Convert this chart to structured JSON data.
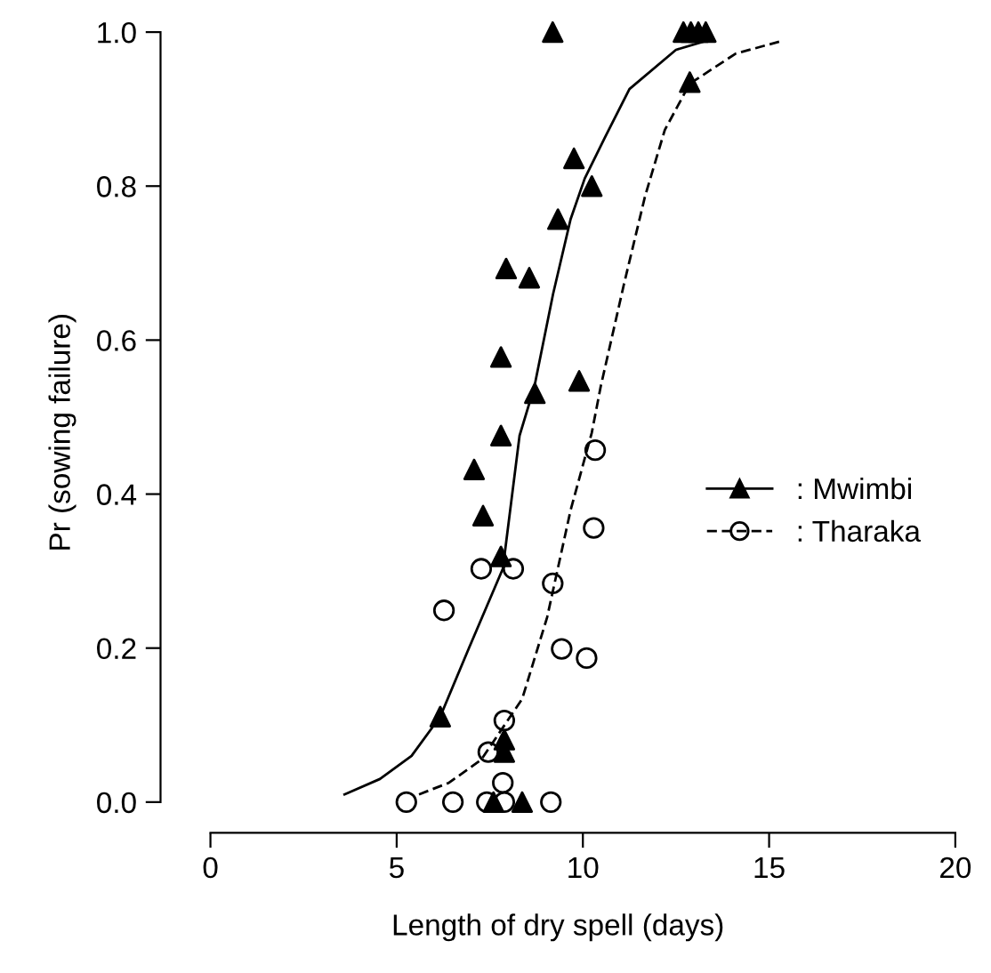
{
  "chart_data": {
    "type": "scatter",
    "xlabel": "Length of dry spell (days)",
    "ylabel": "Pr (sowing failure)",
    "xlim": [
      -1.34,
      20
    ],
    "ylim": [
      -0.04,
      1
    ],
    "xticks": [
      0,
      5,
      10,
      15,
      20
    ],
    "yticks": [
      {
        "value": 0,
        "label": "0.0"
      },
      {
        "value": 0.2,
        "label": "0.2"
      },
      {
        "value": 0.4,
        "label": "0.4"
      },
      {
        "value": 0.6,
        "label": "0.6"
      },
      {
        "value": 0.8,
        "label": "0.8"
      },
      {
        "value": 1,
        "label": "1.0"
      }
    ],
    "grid": false,
    "legend": "right",
    "series": [
      {
        "name": ": Mwimbi",
        "color": "#000000",
        "marker": "triangle",
        "x": [
          9.19,
          9.76,
          10.24,
          9.33,
          7.94,
          8.56,
          7.8,
          8.71,
          9.9,
          7.8,
          7.08,
          7.32,
          7.8,
          6.17,
          7.89,
          7.89,
          7.6,
          8.37,
          12.7,
          12.9,
          13.1,
          13.3,
          12.87
        ],
        "values": [
          1.0,
          0.836,
          0.8,
          0.757,
          0.693,
          0.681,
          0.578,
          0.531,
          0.547,
          0.476,
          0.432,
          0.372,
          0.319,
          0.111,
          0.081,
          0.065,
          0,
          0,
          1.0,
          1.0,
          1.0,
          1.0,
          0.935
        ]
      },
      {
        "name": ": Tharaka",
        "color": "#000000",
        "marker": "circle",
        "x": [
          10.33,
          10.29,
          7.27,
          8.13,
          9.19,
          6.27,
          9.43,
          10.1,
          7.89,
          7.46,
          7.85,
          5.26,
          6.51,
          7.42,
          7.89,
          9.14
        ],
        "values": [
          0.457,
          0.356,
          0.303,
          0.303,
          0.284,
          0.249,
          0.199,
          0.187,
          0.106,
          0.065,
          0.025,
          0,
          0,
          0,
          0,
          0
        ]
      },
      {
        "type": "line",
        "color": "#000000",
        "line_style": "solid",
        "x": [
          3.6,
          4.55,
          5.4,
          6.17,
          6.94,
          7.85,
          8.3,
          8.7,
          9.2,
          9.67,
          10.05,
          10.6,
          11.25,
          12.5,
          13.4
        ],
        "values": [
          0.01,
          0.03,
          0.06,
          0.111,
          0.2,
          0.303,
          0.476,
          0.54,
          0.66,
          0.757,
          0.81,
          0.864,
          0.926,
          0.977,
          0.99
        ]
      },
      {
        "type": "line",
        "color": "#000000",
        "line_style": "dashed",
        "x": [
          5.6,
          6.4,
          7.27,
          8.37,
          9.04,
          9.67,
          10.24,
          10.48,
          11.1,
          11.67,
          12.2,
          12.87,
          14.1,
          15.3
        ],
        "values": [
          0.01,
          0.025,
          0.055,
          0.134,
          0.24,
          0.379,
          0.48,
          0.54,
          0.672,
          0.787,
          0.873,
          0.933,
          0.972,
          0.988
        ]
      }
    ]
  }
}
